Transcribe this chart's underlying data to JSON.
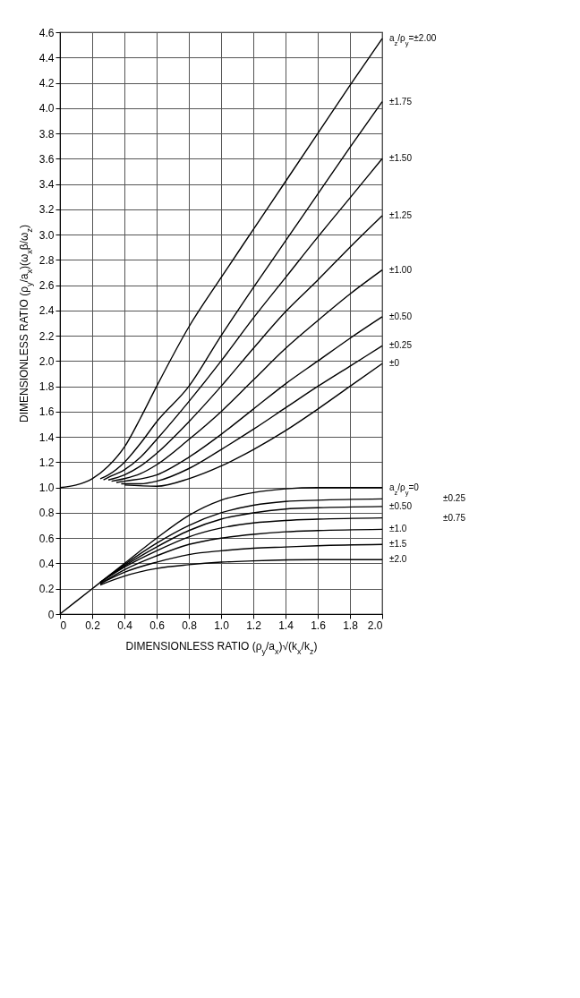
{
  "chart_data": {
    "type": "line",
    "xlabel": "DIMENSIONLESS RATIO (ρ$_{y}$/a$_{x}$)√(k$_{x}$/k$_{z}$)",
    "ylabel": "DIMENSIONLESS RATIO (ρ$_{y}$/a$_{x}$)(ω$_{x}$β/ω$_{z}$)",
    "xlim": [
      0,
      2.0
    ],
    "ylim": [
      0,
      4.6
    ],
    "xticks": [
      0,
      0.2,
      0.4,
      0.6,
      0.8,
      {
        "value": 1,
        "label": "1.0"
      },
      1.2,
      1.4,
      1.6,
      1.8,
      {
        "value": 2,
        "label": "2.0"
      }
    ],
    "yticks": [
      0,
      0.2,
      0.4,
      0.6,
      0.8,
      {
        "value": 1,
        "label": "1.0"
      },
      1.2,
      1.4,
      1.6,
      1.8,
      {
        "value": 2,
        "label": "2.0"
      },
      2.2,
      2.4,
      2.6,
      2.8,
      {
        "value": 3,
        "label": "3.0"
      },
      3.2,
      3.4,
      3.6,
      3.8,
      {
        "value": 4,
        "label": "4.0"
      },
      4.2,
      4.4,
      4.6
    ],
    "grid": true,
    "legend": false,
    "marker": "none",
    "line_style": "solid",
    "series": [
      {
        "name": "a$_{z}$/ρ$_{y}$=±2.00",
        "color": "#000000",
        "x": [
          0,
          0.1,
          0.2,
          0.3,
          0.4,
          0.5,
          0.6,
          0.8,
          1.0,
          1.2,
          1.4,
          1.6,
          1.8,
          2.0
        ],
        "values": [
          1.0,
          1.02,
          1.07,
          1.17,
          1.32,
          1.55,
          1.8,
          2.27,
          2.66,
          3.04,
          3.42,
          3.8,
          4.18,
          4.55
        ]
      },
      {
        "name": "±1.75",
        "color": "#000000",
        "x": [
          0.25,
          0.3,
          0.4,
          0.5,
          0.6,
          0.8,
          1.0,
          1.2,
          1.4,
          1.6,
          1.8,
          2.0
        ],
        "values": [
          1.07,
          1.1,
          1.2,
          1.35,
          1.52,
          1.8,
          2.2,
          2.58,
          2.95,
          3.32,
          3.69,
          4.05
        ]
      },
      {
        "name": "±1.50",
        "color": "#000000",
        "x": [
          0.27,
          0.3,
          0.4,
          0.5,
          0.6,
          0.8,
          1.0,
          1.2,
          1.4,
          1.6,
          1.8,
          2.0
        ],
        "values": [
          1.06,
          1.08,
          1.14,
          1.24,
          1.38,
          1.68,
          2.0,
          2.34,
          2.66,
          2.98,
          3.29,
          3.6
        ]
      },
      {
        "name": "±1.25",
        "color": "#000000",
        "x": [
          0.3,
          0.4,
          0.5,
          0.6,
          0.8,
          1.0,
          1.2,
          1.4,
          1.6,
          1.8,
          2.0
        ],
        "values": [
          1.06,
          1.1,
          1.17,
          1.27,
          1.52,
          1.8,
          2.1,
          2.39,
          2.64,
          2.9,
          3.15
        ]
      },
      {
        "name": "±1.00",
        "color": "#000000",
        "x": [
          0.32,
          0.4,
          0.5,
          0.6,
          0.8,
          1.0,
          1.2,
          1.4,
          1.6,
          1.8,
          2.0
        ],
        "values": [
          1.05,
          1.07,
          1.11,
          1.18,
          1.38,
          1.6,
          1.85,
          2.1,
          2.32,
          2.53,
          2.72
        ]
      },
      {
        "name": "±0.50",
        "color": "#000000",
        "x": [
          0.35,
          0.4,
          0.6,
          0.8,
          1.0,
          1.2,
          1.4,
          1.6,
          1.8,
          2.0
        ],
        "values": [
          1.04,
          1.05,
          1.1,
          1.24,
          1.42,
          1.62,
          1.82,
          2.0,
          2.18,
          2.35
        ]
      },
      {
        "name": "±0.25",
        "color": "#000000",
        "x": [
          0.38,
          0.5,
          0.6,
          0.8,
          1.0,
          1.2,
          1.4,
          1.6,
          1.8,
          2.0
        ],
        "values": [
          1.03,
          1.03,
          1.05,
          1.15,
          1.3,
          1.46,
          1.63,
          1.8,
          1.96,
          2.12
        ]
      },
      {
        "name": "±0",
        "color": "#000000",
        "x": [
          0.4,
          0.6,
          0.8,
          1.0,
          1.2,
          1.4,
          1.6,
          1.8,
          2.0
        ],
        "values": [
          1.02,
          1.01,
          1.07,
          1.17,
          1.3,
          1.45,
          1.62,
          1.8,
          1.98
        ]
      },
      {
        "name": "a$_{z}$/ρ$_{y}$=0",
        "color": "#000000",
        "x": [
          0,
          0.2,
          0.4,
          0.6,
          0.8,
          1.0,
          1.2,
          1.4,
          1.6,
          2.0
        ],
        "values": [
          0,
          0.2,
          0.4,
          0.6,
          0.78,
          0.9,
          0.96,
          0.99,
          1.0,
          1.0
        ]
      },
      {
        "name": "±0.25",
        "color": "#000000",
        "x": [
          0.25,
          0.4,
          0.6,
          0.8,
          1.0,
          1.2,
          1.4,
          1.6,
          2.0
        ],
        "values": [
          0.25,
          0.39,
          0.56,
          0.7,
          0.8,
          0.86,
          0.89,
          0.9,
          0.91
        ]
      },
      {
        "name": "±0.50",
        "color": "#000000",
        "x": [
          0.25,
          0.4,
          0.6,
          0.8,
          1.0,
          1.2,
          1.4,
          1.6,
          2.0
        ],
        "values": [
          0.25,
          0.38,
          0.53,
          0.66,
          0.75,
          0.8,
          0.83,
          0.84,
          0.85
        ]
      },
      {
        "name": "±0.75",
        "color": "#000000",
        "x": [
          0.25,
          0.4,
          0.6,
          0.8,
          1.0,
          1.2,
          1.4,
          1.6,
          2.0
        ],
        "values": [
          0.25,
          0.37,
          0.5,
          0.61,
          0.68,
          0.72,
          0.74,
          0.75,
          0.76
        ]
      },
      {
        "name": "±1.0",
        "color": "#000000",
        "x": [
          0.25,
          0.4,
          0.6,
          0.8,
          1.0,
          1.2,
          1.4,
          1.6,
          2.0
        ],
        "values": [
          0.24,
          0.35,
          0.46,
          0.55,
          0.6,
          0.63,
          0.65,
          0.66,
          0.67
        ]
      },
      {
        "name": "±1.5",
        "color": "#000000",
        "x": [
          0.25,
          0.4,
          0.6,
          0.8,
          1.0,
          1.2,
          1.4,
          1.6,
          2.0
        ],
        "values": [
          0.24,
          0.33,
          0.41,
          0.47,
          0.5,
          0.52,
          0.53,
          0.54,
          0.55
        ]
      },
      {
        "name": "±2.0",
        "color": "#000000",
        "x": [
          0.25,
          0.4,
          0.6,
          0.8,
          1.0,
          1.2,
          1.6,
          2.0
        ],
        "values": [
          0.23,
          0.3,
          0.36,
          0.39,
          0.41,
          0.42,
          0.43,
          0.43
        ]
      }
    ]
  }
}
